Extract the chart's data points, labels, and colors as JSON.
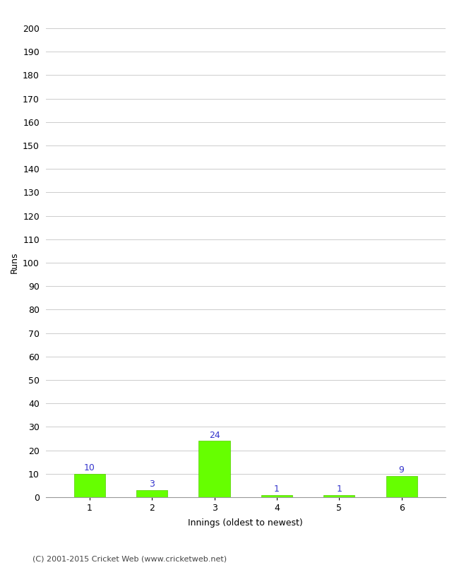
{
  "innings": [
    1,
    2,
    3,
    4,
    5,
    6
  ],
  "runs": [
    10,
    3,
    24,
    1,
    1,
    9
  ],
  "bar_color": "#66ff00",
  "bar_edge_color": "#55cc00",
  "label_color": "#3333cc",
  "ylabel": "Runs",
  "xlabel": "Innings (oldest to newest)",
  "ylim": [
    0,
    200
  ],
  "yticks": [
    0,
    10,
    20,
    30,
    40,
    50,
    60,
    70,
    80,
    90,
    100,
    110,
    120,
    130,
    140,
    150,
    160,
    170,
    180,
    190,
    200
  ],
  "footer": "(C) 2001-2015 Cricket Web (www.cricketweb.net)",
  "background_color": "#ffffff",
  "grid_color": "#cccccc"
}
